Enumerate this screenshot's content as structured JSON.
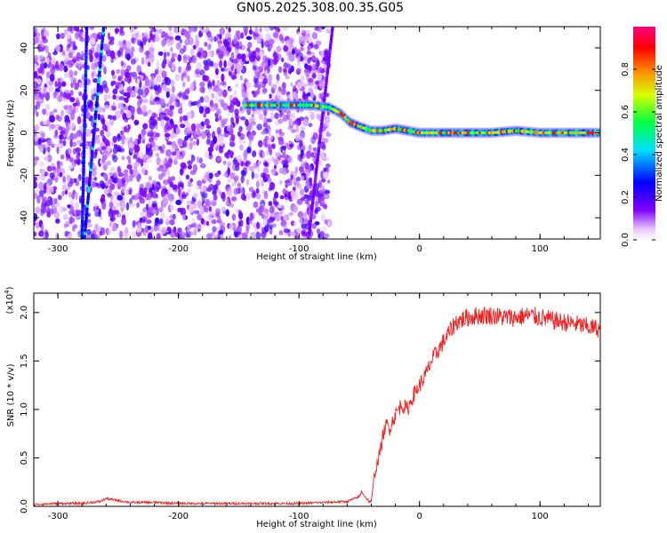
{
  "title": "GN05.2025.308.00.35.G05",
  "colors": {
    "snr_line": "#ee2222",
    "background": "#ffffff",
    "axis": "#000000"
  },
  "chart_data": [
    {
      "type": "heatmap",
      "xlabel": "Height of straight line (km)",
      "ylabel": "Frequency (Hz)",
      "xlim": [
        -320,
        150
      ],
      "ylim": [
        -50,
        50
      ],
      "xticks": [
        -300,
        -200,
        -100,
        0,
        100
      ],
      "yticks": [
        -40,
        -20,
        0,
        20,
        40
      ],
      "colorbar": {
        "label": "Normalized spectral amplitude",
        "range": [
          0,
          1
        ],
        "ticks": [
          "0.0",
          "0.2",
          "0.4",
          "0.6",
          "0.8"
        ],
        "colormap": "rainbow (white-violet-blue-cyan-green-yellow-red-magenta)"
      },
      "features": {
        "noise_region_x": [
          -320,
          -75
        ],
        "diagonal_trace_1": {
          "x": [
            -280,
            -276
          ],
          "y": [
            -50,
            50
          ]
        },
        "diagonal_trace_2": {
          "x": [
            -278,
            -262
          ],
          "y": [
            -50,
            50
          ]
        },
        "diagonal_trace_3": {
          "x": [
            -92,
            -72
          ],
          "y": [
            -50,
            50
          ]
        },
        "signal_track": {
          "x": [
            -145,
            -90,
            -75,
            -65,
            -58,
            -50,
            -40,
            -30,
            -20,
            -10,
            0,
            20,
            40,
            60,
            80,
            100,
            120,
            150
          ],
          "y": [
            13,
            13,
            12,
            9,
            5,
            3,
            1,
            1,
            2,
            1,
            0,
            0,
            0,
            0,
            1,
            0,
            0,
            0
          ]
        }
      }
    },
    {
      "type": "line",
      "xlabel": "Height of straight line (km)",
      "ylabel": "SNR (10 * v/v)",
      "y_scale_note": "(x10",
      "y_scale_exp": "4",
      "xlim": [
        -320,
        150
      ],
      "ylim": [
        0,
        2.2
      ],
      "xticks": [
        -300,
        -200,
        -100,
        0,
        100
      ],
      "yticks": [
        "0.0",
        "0.5",
        "1.0",
        "1.5",
        "2.0"
      ],
      "series": [
        {
          "x": [
            -320,
            -300,
            -280,
            -265,
            -260,
            -240,
            -220,
            -200,
            -180,
            -160,
            -140,
            -120,
            -100,
            -80,
            -60,
            -50,
            -48,
            -45,
            -42,
            -40,
            -37,
            -35,
            -32,
            -30,
            -27,
            -25,
            -20,
            -15,
            -10,
            -5,
            0,
            5,
            10,
            15,
            20,
            25,
            30,
            40,
            50,
            60,
            70,
            80,
            90,
            100,
            110,
            120,
            130,
            140,
            150
          ],
          "values": [
            0.02,
            0.03,
            0.03,
            0.05,
            0.08,
            0.04,
            0.04,
            0.03,
            0.03,
            0.03,
            0.03,
            0.03,
            0.03,
            0.04,
            0.05,
            0.1,
            0.15,
            0.1,
            0.05,
            0.05,
            0.35,
            0.45,
            0.6,
            0.75,
            0.85,
            0.8,
            0.95,
            1.05,
            1.0,
            1.15,
            1.25,
            1.35,
            1.5,
            1.6,
            1.7,
            1.8,
            1.9,
            1.95,
            1.97,
            1.97,
            1.95,
            1.95,
            1.97,
            1.95,
            1.92,
            1.9,
            1.88,
            1.85,
            1.83
          ]
        }
      ]
    }
  ]
}
